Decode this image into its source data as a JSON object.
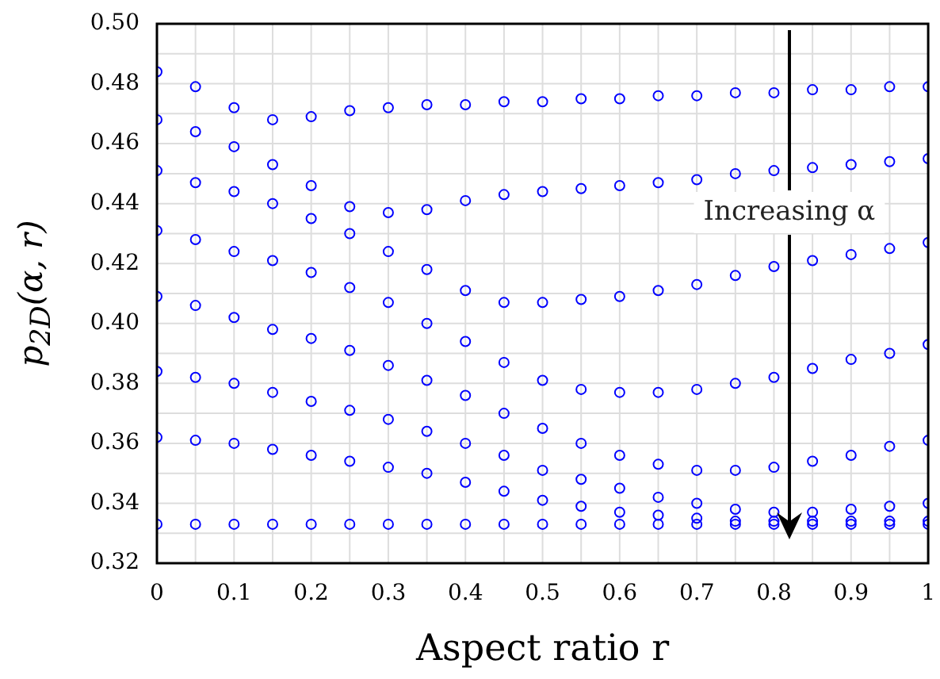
{
  "chart_data": {
    "type": "scatter",
    "xlabel": "Aspect ratio r",
    "ylabel": "p$_{2D}$(α, r)",
    "x": [
      0,
      0.05,
      0.1,
      0.15,
      0.2,
      0.25,
      0.3,
      0.35,
      0.4,
      0.45,
      0.5,
      0.55,
      0.6,
      0.65,
      0.7,
      0.75,
      0.8,
      0.85,
      0.9,
      0.95,
      1
    ],
    "series": [
      {
        "color": "#0000ff",
        "values": [
          0.484,
          0.479,
          0.472,
          0.468,
          0.469,
          0.471,
          0.472,
          0.473,
          0.473,
          0.474,
          0.474,
          0.475,
          0.475,
          0.476,
          0.476,
          0.477,
          0.477,
          0.478,
          0.478,
          0.479,
          0.479
        ]
      },
      {
        "color": "#0000ff",
        "values": [
          0.468,
          0.464,
          0.459,
          0.453,
          0.446,
          0.439,
          0.437,
          0.438,
          0.441,
          0.443,
          0.444,
          0.445,
          0.446,
          0.447,
          0.448,
          0.45,
          0.451,
          0.452,
          0.453,
          0.454,
          0.455
        ]
      },
      {
        "color": "#0000ff",
        "values": [
          0.451,
          0.447,
          0.444,
          0.44,
          0.435,
          0.43,
          0.424,
          0.418,
          0.411,
          0.407,
          0.407,
          0.408,
          0.409,
          0.411,
          0.413,
          0.416,
          0.419,
          0.421,
          0.423,
          0.425,
          0.427
        ]
      },
      {
        "color": "#0000ff",
        "values": [
          0.431,
          0.428,
          0.424,
          0.421,
          0.417,
          0.412,
          0.407,
          0.4,
          0.394,
          0.387,
          0.381,
          0.378,
          0.377,
          0.377,
          0.378,
          0.38,
          0.382,
          0.385,
          0.388,
          0.39,
          0.393
        ]
      },
      {
        "color": "#0000ff",
        "values": [
          0.409,
          0.406,
          0.402,
          0.398,
          0.395,
          0.391,
          0.386,
          0.381,
          0.376,
          0.37,
          0.365,
          0.36,
          0.356,
          0.353,
          0.351,
          0.351,
          0.352,
          0.354,
          0.356,
          0.359,
          0.361
        ]
      },
      {
        "color": "#0000ff",
        "values": [
          0.384,
          0.382,
          0.38,
          0.377,
          0.374,
          0.371,
          0.368,
          0.364,
          0.36,
          0.356,
          0.351,
          0.348,
          0.345,
          0.342,
          0.34,
          0.338,
          0.337,
          0.337,
          0.338,
          0.339,
          0.34
        ]
      },
      {
        "color": "#0000ff",
        "values": [
          0.362,
          0.361,
          0.36,
          0.358,
          0.356,
          0.354,
          0.352,
          0.35,
          0.347,
          0.344,
          0.341,
          0.339,
          0.337,
          0.336,
          0.335,
          0.334,
          0.334,
          0.334,
          0.334,
          0.334,
          0.334
        ]
      },
      {
        "color": "#0000ff",
        "values": [
          0.333,
          0.333,
          0.333,
          0.333,
          0.333,
          0.333,
          0.333,
          0.333,
          0.333,
          0.333,
          0.333,
          0.333,
          0.333,
          0.333,
          0.333,
          0.333,
          0.333,
          0.333,
          0.333,
          0.333,
          0.333
        ]
      }
    ],
    "xlim": [
      0,
      1
    ],
    "xticks": [
      0,
      0.1,
      0.2,
      0.3,
      0.4,
      0.5,
      0.6,
      0.7,
      0.8,
      0.9,
      1
    ],
    "ylim": [
      0.32,
      0.5
    ],
    "yticks": [
      0.32,
      0.34,
      0.36,
      0.38,
      {
        "value": 0.4,
        "label": "0.40"
      },
      0.42,
      0.44,
      0.46,
      0.48,
      {
        "value": 0.5,
        "label": "0.50"
      }
    ],
    "annotations": [
      "Increasing α"
    ],
    "grid": true,
    "legend": false,
    "marker": "circle"
  }
}
